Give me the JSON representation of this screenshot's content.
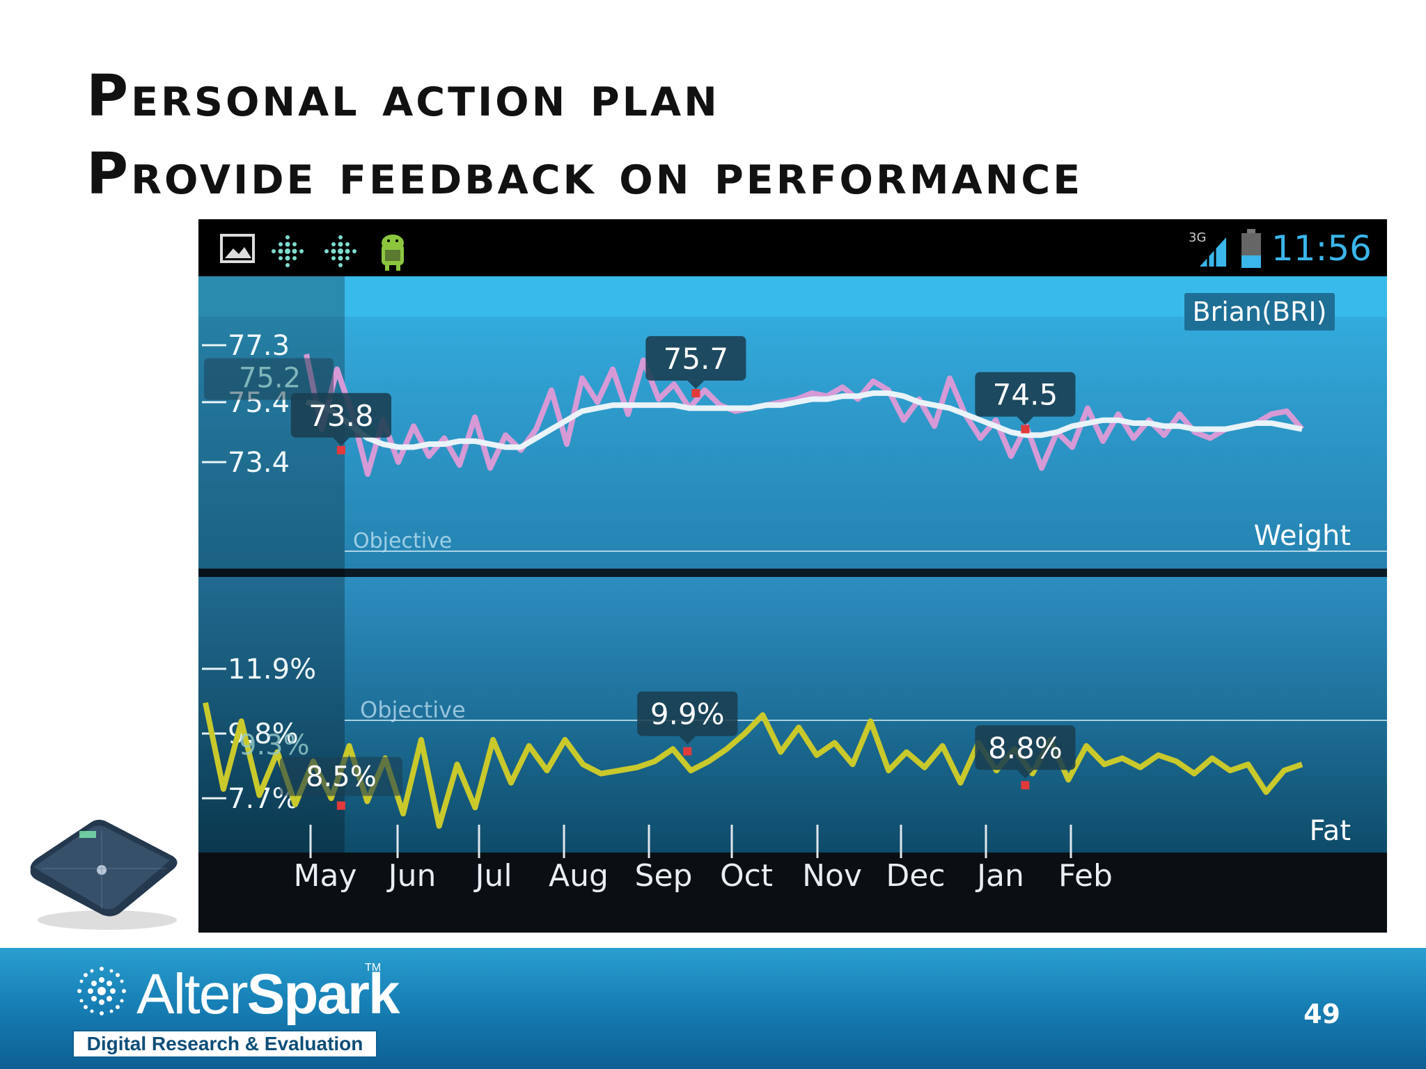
{
  "slide": {
    "title_line1": "Personal action plan",
    "title_line2": "Provide feedback on performance",
    "page_number": "49"
  },
  "status_bar": {
    "time": "11:56",
    "network": "3G",
    "icons": [
      "picture-icon",
      "fitbit-icon",
      "fitbit-icon",
      "android-icon",
      "signal-icon",
      "battery-icon"
    ]
  },
  "app": {
    "user_badge": "Brian(BRI)"
  },
  "chart_data": [
    {
      "type": "line",
      "name": "Weight",
      "title": "Weight",
      "y_ticks": [
        "77.3",
        "75.4",
        "73.4"
      ],
      "y_tick_values": [
        77.3,
        75.4,
        73.4
      ],
      "objective_label": "Objective",
      "x_labels": [
        "May",
        "Jun",
        "Jul",
        "Aug",
        "Sep",
        "Oct",
        "Nov",
        "Dec",
        "Jan",
        "Feb"
      ],
      "callouts": [
        {
          "label": "75.2",
          "x_month": 0.0,
          "value": 75.2
        },
        {
          "label": "73.8",
          "x_month": 0.7,
          "value": 73.8
        },
        {
          "label": "75.7",
          "x_month": 4.9,
          "value": 75.7
        },
        {
          "label": "74.5",
          "x_month": 8.8,
          "value": 74.5
        }
      ],
      "series": [
        {
          "values_raw": [
            77.0,
            74.5,
            76.5,
            75.0,
            73.0,
            74.8,
            73.4,
            74.6,
            73.6,
            74.2,
            73.3,
            74.9,
            73.2,
            74.3,
            73.8,
            74.5,
            75.8,
            74.0,
            76.2,
            75.4,
            76.5,
            75.0,
            76.8,
            75.5,
            76.0,
            75.2,
            75.8,
            75.3,
            75.1,
            75.2,
            75.3,
            75.4,
            75.5,
            75.7,
            75.6,
            75.9,
            75.5,
            76.1,
            75.8,
            74.8,
            75.5,
            74.6,
            76.2,
            75.0,
            74.2,
            74.8,
            73.6,
            74.6,
            73.2,
            74.4,
            73.9,
            75.2,
            74.1,
            75.0,
            74.2,
            74.8,
            74.3,
            75.0,
            74.4,
            74.2,
            74.5,
            74.6,
            74.7,
            75.0,
            75.1,
            74.5
          ],
          "values_avg": [
            75.4,
            75.3,
            75.0,
            74.6,
            74.2,
            74.0,
            73.9,
            73.9,
            74.0,
            74.0,
            74.1,
            74.1,
            74.0,
            73.9,
            73.9,
            74.2,
            74.5,
            74.8,
            75.1,
            75.2,
            75.3,
            75.3,
            75.3,
            75.3,
            75.3,
            75.2,
            75.2,
            75.2,
            75.2,
            75.2,
            75.3,
            75.3,
            75.4,
            75.5,
            75.5,
            75.6,
            75.6,
            75.7,
            75.7,
            75.6,
            75.4,
            75.3,
            75.2,
            75.0,
            74.8,
            74.6,
            74.4,
            74.3,
            74.3,
            74.4,
            74.6,
            74.7,
            74.8,
            74.8,
            74.7,
            74.7,
            74.6,
            74.6,
            74.5,
            74.5,
            74.5,
            74.6,
            74.7,
            74.7,
            74.6,
            74.5
          ]
        }
      ]
    },
    {
      "type": "line",
      "name": "Fat",
      "title": "Fat",
      "y_ticks": [
        "11.9%",
        "9.8%",
        "7.7%"
      ],
      "y_tick_values": [
        11.9,
        9.8,
        7.7
      ],
      "objective_label": "Objective",
      "x_labels": [
        "May",
        "Jun",
        "Jul",
        "Aug",
        "Sep",
        "Oct",
        "Nov",
        "Dec",
        "Jan",
        "Feb"
      ],
      "callouts": [
        {
          "label": "9.3%",
          "x_month": 0.0,
          "value": 9.3
        },
        {
          "label": "8.5%",
          "x_month": 0.7,
          "value": 8.5
        },
        {
          "label": "9.9%",
          "x_month": 4.8,
          "value": 9.9
        },
        {
          "label": "8.8%",
          "x_month": 8.8,
          "value": 8.8
        }
      ],
      "series": [
        {
          "values": [
            10.8,
            8.0,
            10.2,
            7.8,
            9.2,
            7.5,
            8.9,
            7.7,
            9.4,
            7.6,
            9.0,
            7.2,
            9.6,
            6.8,
            8.8,
            7.4,
            9.6,
            8.2,
            9.4,
            8.6,
            9.6,
            8.8,
            8.5,
            8.6,
            8.7,
            8.9,
            9.3,
            8.6,
            8.9,
            9.3,
            9.8,
            10.4,
            9.2,
            10.0,
            9.1,
            9.5,
            8.8,
            10.2,
            8.6,
            9.2,
            8.7,
            9.4,
            8.2,
            9.5,
            8.6,
            9.3,
            8.5,
            9.6,
            8.3,
            9.4,
            8.8,
            9.0,
            8.7,
            9.1,
            8.9,
            8.5,
            9.0,
            8.6,
            8.8,
            7.9,
            8.6,
            8.8
          ]
        }
      ]
    }
  ]
}
